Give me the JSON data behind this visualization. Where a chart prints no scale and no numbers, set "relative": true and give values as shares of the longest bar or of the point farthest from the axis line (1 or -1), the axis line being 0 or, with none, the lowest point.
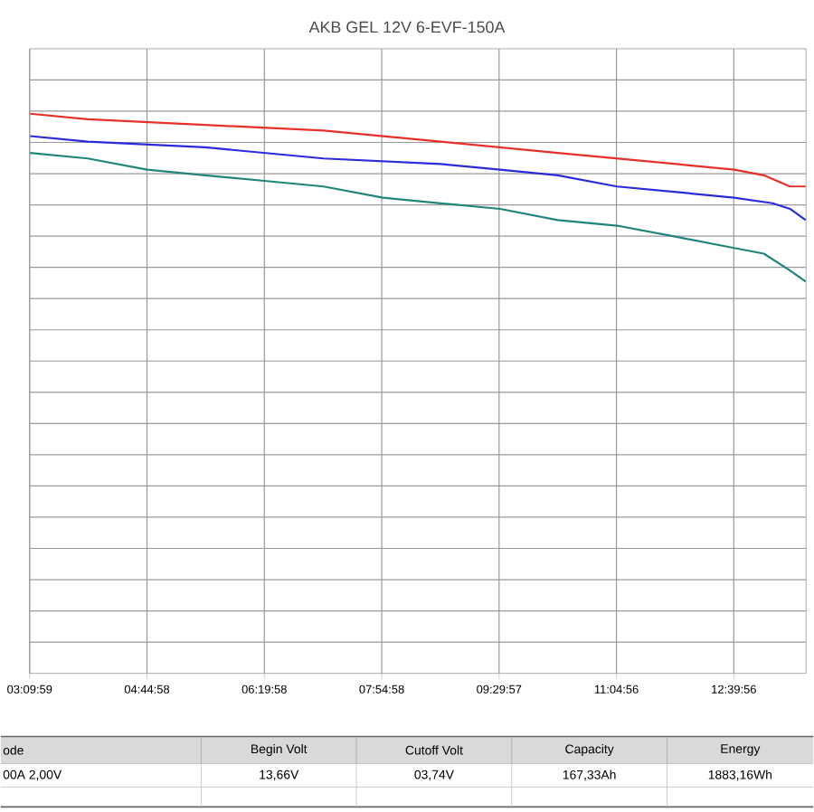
{
  "chart_data": {
    "type": "line",
    "title": "AKB GEL 12V 6-EVF-150A",
    "relative": true,
    "grid": true,
    "marker": "none",
    "line_style": "solid",
    "xlim": [
      3.1663,
      13.64
    ],
    "xticks": [
      {
        "value": 3.16639,
        "label": "03:09:59"
      },
      {
        "value": 4.74944,
        "label": "04:44:58"
      },
      {
        "value": 6.33278,
        "label": "06:19:58"
      },
      {
        "value": 7.91611,
        "label": "07:54:58"
      },
      {
        "value": 9.49917,
        "label": "09:29:57"
      },
      {
        "value": 11.08222,
        "label": "11:04:56"
      },
      {
        "value": 12.66556,
        "label": "12:39:56"
      }
    ],
    "series": [
      {
        "color": "#e8302a",
        "x": [
          3.173,
          3.951,
          5.53,
          7.132,
          8.711,
          10.289,
          11.891,
          12.669,
          13.07,
          13.423,
          13.635
        ],
        "values": [
          1.0,
          0.99,
          0.98,
          0.97,
          0.95,
          0.93,
          0.91,
          0.9,
          0.89,
          0.87,
          0.87
        ]
      },
      {
        "color": "#2b2bdd",
        "x": [
          3.173,
          3.951,
          5.53,
          7.132,
          8.711,
          9.512,
          10.289,
          11.09,
          11.891,
          12.669,
          13.188,
          13.423,
          13.635
        ],
        "values": [
          0.96,
          0.95,
          0.94,
          0.92,
          0.91,
          0.9,
          0.89,
          0.87,
          0.86,
          0.85,
          0.84,
          0.83,
          0.81
        ]
      },
      {
        "color": "#20857a",
        "x": [
          3.173,
          3.951,
          4.752,
          5.53,
          6.331,
          7.132,
          7.933,
          8.711,
          9.512,
          10.289,
          11.09,
          11.891,
          12.669,
          13.07,
          13.423,
          13.635
        ],
        "values": [
          0.93,
          0.92,
          0.9,
          0.89,
          0.88,
          0.87,
          0.85,
          0.84,
          0.83,
          0.81,
          0.8,
          0.78,
          0.76,
          0.75,
          0.72,
          0.7
        ]
      }
    ],
    "annotations": [
      "ode",
      "Begin Volt",
      "Cutoff Volt",
      "Capacity",
      "Energy",
      "00A  2,00V",
      "13,66V",
      "03,74V",
      "167,33Ah",
      "1883,16Wh"
    ]
  }
}
